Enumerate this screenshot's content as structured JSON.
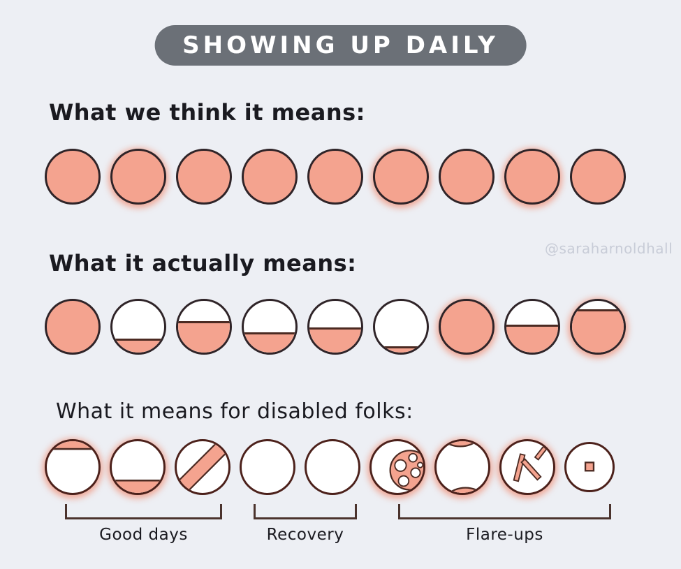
{
  "title": "SHOWING UP DAILY",
  "watermark": "@saraharnoldhall",
  "colors": {
    "background": "#edeff4",
    "salmon": "#f4a38f",
    "outline_dark": "#2f2428",
    "outline_maroon": "#4c211b",
    "fill_line": "#4b2a22",
    "pill_bg": "#6b7077",
    "pill_text": "#ffffff",
    "bracket": "#4b332d",
    "watermark_color": "#c8ccd7",
    "heading_text": "#1a1a20"
  },
  "rows": [
    {
      "heading": "What we think it means:",
      "circles": [
        {
          "type": "fill",
          "percent": 100,
          "glow": false
        },
        {
          "type": "fill",
          "percent": 100,
          "glow": true
        },
        {
          "type": "fill",
          "percent": 100,
          "glow": false
        },
        {
          "type": "fill",
          "percent": 100,
          "glow": false
        },
        {
          "type": "fill",
          "percent": 100,
          "glow": false
        },
        {
          "type": "fill",
          "percent": 100,
          "glow": true
        },
        {
          "type": "fill",
          "percent": 100,
          "glow": false
        },
        {
          "type": "fill",
          "percent": 100,
          "glow": true
        },
        {
          "type": "fill",
          "percent": 100,
          "glow": false
        }
      ]
    },
    {
      "heading": "What it actually means:",
      "circles": [
        {
          "type": "fill",
          "percent": 100,
          "glow": false
        },
        {
          "type": "fill",
          "percent": 28,
          "glow": false
        },
        {
          "type": "fill",
          "percent": 62,
          "glow": false
        },
        {
          "type": "fill",
          "percent": 40,
          "glow": false
        },
        {
          "type": "fill",
          "percent": 50,
          "glow": false
        },
        {
          "type": "fill",
          "percent": 14,
          "glow": false
        },
        {
          "type": "fill",
          "percent": 100,
          "glow": true
        },
        {
          "type": "fill",
          "percent": 55,
          "glow": false
        },
        {
          "type": "fill",
          "percent": 85,
          "glow": true
        }
      ]
    },
    {
      "heading": "What it means for disabled folks:",
      "circles": [
        {
          "type": "top-band",
          "percent": 15,
          "glow": true
        },
        {
          "type": "bottom-fill",
          "percent": 24,
          "glow": true
        },
        {
          "type": "diagonal-stripe",
          "glow": false
        },
        {
          "type": "empty",
          "glow": false
        },
        {
          "type": "empty",
          "glow": false
        },
        {
          "type": "bubbles",
          "glow": true
        },
        {
          "type": "crescents",
          "glow": true
        },
        {
          "type": "sticks",
          "glow": true
        },
        {
          "type": "small-square",
          "size": "small",
          "glow": false
        }
      ],
      "groups": [
        {
          "label": "Good days"
        },
        {
          "label": "Recovery"
        },
        {
          "label": "Flare-ups"
        }
      ]
    }
  ]
}
